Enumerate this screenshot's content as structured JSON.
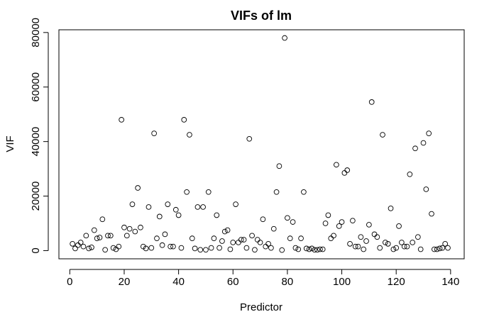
{
  "chart_data": {
    "type": "scatter",
    "title": "VIFs of lm",
    "xlabel": "Predictor",
    "ylabel": "VIF",
    "xlim": [
      -4,
      145
    ],
    "ylim": [
      -3000,
      81000
    ],
    "x_ticks": [
      0,
      20,
      40,
      60,
      80,
      100,
      120,
      140
    ],
    "y_ticks": [
      0,
      20000,
      40000,
      60000,
      80000
    ],
    "x_tick_labels": [
      "0",
      "20",
      "40",
      "60",
      "80",
      "100",
      "120",
      "140"
    ],
    "y_tick_labels": [
      "0",
      "20000",
      "40000",
      "60000",
      "80000"
    ],
    "grid": false,
    "marker": "open-circle",
    "values": [
      2500,
      800,
      2000,
      3000,
      1500,
      5500,
      800,
      1200,
      7500,
      4500,
      4800,
      11500,
      300,
      5500,
      5500,
      1000,
      500,
      1500,
      48000,
      8500,
      5500,
      8000,
      17000,
      7000,
      23000,
      8500,
      1500,
      800,
      16000,
      1000,
      43000,
      4500,
      12500,
      2000,
      6000,
      17000,
      1500,
      1500,
      15000,
      13000,
      1000,
      48000,
      21500,
      42500,
      4500,
      800,
      16000,
      300,
      16000,
      300,
      21500,
      1000,
      4500,
      13000,
      1000,
      3500,
      7000,
      7500,
      500,
      3000,
      17000,
      3000,
      4000,
      4000,
      1000,
      41000,
      5500,
      300,
      4000,
      3000,
      11500,
      1500,
      2500,
      1000,
      8000,
      21500,
      31000,
      200,
      78000,
      12000,
      4500,
      10500,
      1000,
      500,
      4500,
      21500,
      800,
      500,
      800,
      300,
      300,
      500,
      500,
      10000,
      13000,
      4500,
      5500,
      31500,
      9000,
      10500,
      28500,
      29500,
      2500,
      11000,
      1500,
      1500,
      5000,
      500,
      3500,
      9500,
      54500,
      6000,
      5000,
      1000,
      42500,
      3000,
      2500,
      15500,
      500,
      1000,
      9000,
      3000,
      1500,
      1500,
      28000,
      3000,
      37500,
      5000,
      500,
      39500,
      22500,
      43000,
      13500,
      500,
      500,
      800,
      1000,
      2500,
      1000
    ]
  }
}
